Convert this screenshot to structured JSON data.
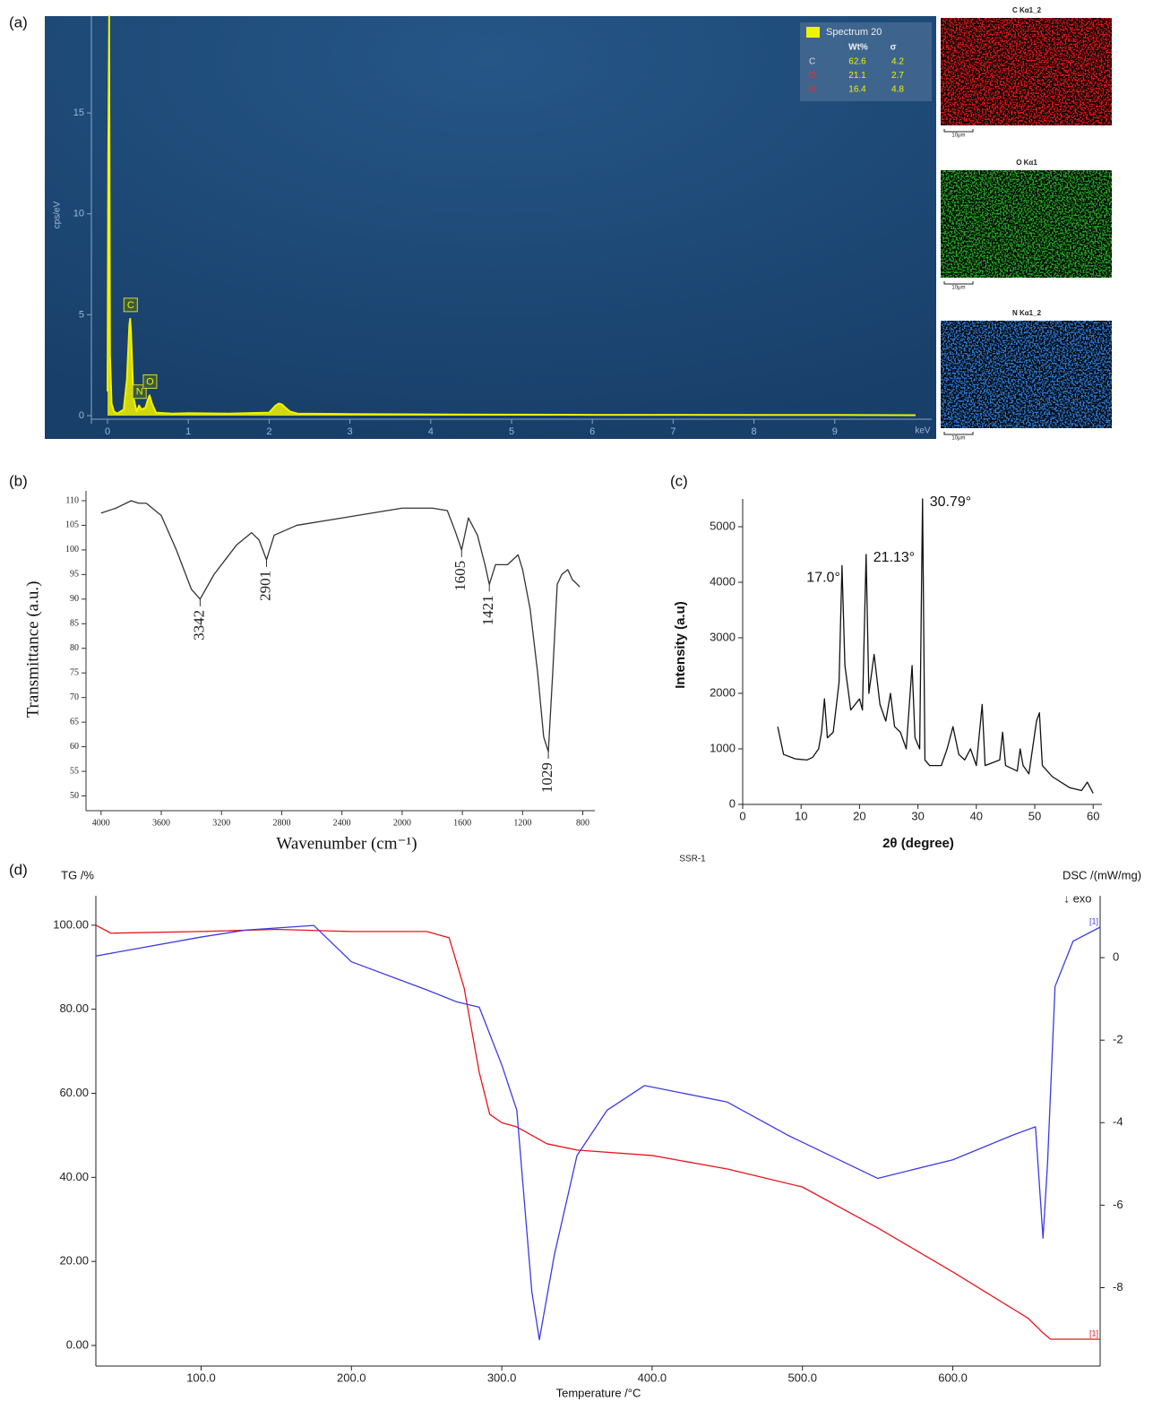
{
  "chart_data": [
    {
      "type": "area",
      "panel": "(a)",
      "x_label": "keV",
      "y_label": "cps/eV",
      "xlim": [
        -0.2,
        10.2
      ],
      "ylim": [
        -0.4,
        19.8
      ],
      "xticks": [
        0,
        1,
        2,
        3,
        4,
        5,
        6,
        7,
        8,
        9
      ],
      "yticks": [
        0,
        5,
        10,
        15
      ],
      "series": [
        {
          "color": "#f2f200",
          "x": [
            0,
            0.01,
            0.02,
            0.03,
            0.05,
            0.08,
            0.12,
            0.2,
            0.24,
            0.27,
            0.28,
            0.29,
            0.32,
            0.36,
            0.39,
            0.42,
            0.47,
            0.5,
            0.52,
            0.55,
            0.6,
            0.8,
            1,
            1.5,
            2,
            2.08,
            2.12,
            2.16,
            2.2,
            2.26,
            2.35,
            3,
            4,
            5,
            6,
            7,
            8,
            9,
            10
          ],
          "values": [
            1.2,
            13.5,
            19.8,
            3,
            0.6,
            0.2,
            0.1,
            0.3,
            1.8,
            4.5,
            4.8,
            4.2,
            0.9,
            0.2,
            0.5,
            0.3,
            0.4,
            0.8,
            1,
            0.6,
            0.15,
            0.1,
            0.12,
            0.1,
            0.15,
            0.5,
            0.6,
            0.55,
            0.4,
            0.2,
            0.1,
            0.08,
            0.06,
            0.05,
            0.04,
            0.04,
            0.03,
            0.03,
            0.02
          ]
        }
      ],
      "annotations": [
        {
          "text": "C",
          "x": 0.28,
          "y": 4.8
        },
        {
          "text": "N",
          "x": 0.39,
          "y": 0.5
        },
        {
          "text": "O",
          "x": 0.52,
          "y": 1
        }
      ],
      "legend_table": {
        "title": "Spectrum 20",
        "swatch_color": "#f2f200",
        "value_color": "#f2f200",
        "header": [
          "Wt%",
          "σ"
        ],
        "rows": [
          {
            "label": "C",
            "color": "#dddddd",
            "values": [
              62.6,
              4.2
            ]
          },
          {
            "label": "O",
            "color": "#e03030",
            "values": [
              21.1,
              2.7
            ]
          },
          {
            "label": "N",
            "color": "#e03030",
            "values": [
              16.4,
              4.8
            ]
          }
        ]
      },
      "maps": [
        {
          "title": "C Kα1_2",
          "color": "#e01818",
          "scale": "10μm"
        },
        {
          "title": "O Kα1",
          "color": "#22a822",
          "scale": "10μm"
        },
        {
          "title": "N Kα1_2",
          "color": "#2a7ad8",
          "scale": "10μm"
        }
      ]
    },
    {
      "type": "line",
      "panel": "(b)",
      "x_label": "Wavenumber (cm⁻¹)",
      "y_label": "Transmittance (a.u.)",
      "xlim": [
        4100,
        720
      ],
      "ylim": [
        47,
        112
      ],
      "xticks": [
        4000,
        3600,
        3200,
        2800,
        2400,
        2000,
        1600,
        1200,
        800
      ],
      "yticks": [
        50,
        55,
        60,
        65,
        70,
        75,
        80,
        85,
        90,
        95,
        100,
        105,
        110
      ],
      "series": [
        {
          "color": "#333333",
          "x": [
            4000,
            3900,
            3800,
            3750,
            3700,
            3600,
            3500,
            3400,
            3342,
            3250,
            3100,
            3000,
            2950,
            2901,
            2850,
            2700,
            2400,
            2200,
            2000,
            1800,
            1700,
            1650,
            1605,
            1560,
            1500,
            1450,
            1421,
            1380,
            1300,
            1230,
            1200,
            1150,
            1100,
            1060,
            1029,
            1000,
            970,
            940,
            900,
            870,
            820
          ],
          "values": [
            107.5,
            108.5,
            110,
            109.5,
            109.5,
            107,
            100,
            92,
            90,
            95,
            101,
            103.5,
            102,
            98,
            103,
            105,
            106.5,
            107.5,
            108.5,
            108.5,
            108,
            104,
            100,
            106.5,
            103,
            97,
            93,
            97,
            97,
            99,
            96,
            88,
            75,
            62,
            59,
            75,
            93,
            95,
            96,
            94,
            92.5
          ]
        }
      ],
      "annotations": [
        {
          "text": "3342",
          "x": 3342,
          "y": 90
        },
        {
          "text": "2901",
          "x": 2901,
          "y": 98
        },
        {
          "text": "1605",
          "x": 1605,
          "y": 100
        },
        {
          "text": "1421",
          "x": 1421,
          "y": 93
        },
        {
          "text": "1029",
          "x": 1029,
          "y": 59
        }
      ]
    },
    {
      "type": "line",
      "panel": "(c)",
      "x_label": "2θ (degree)",
      "y_label": "Intensity (a.u)",
      "xlim": [
        0,
        61.5
      ],
      "ylim": [
        0,
        5500
      ],
      "xticks": [
        0,
        10,
        20,
        30,
        40,
        50,
        60
      ],
      "yticks": [
        0,
        1000,
        2000,
        3000,
        4000,
        5000
      ],
      "series": [
        {
          "color": "#111111",
          "x": [
            6,
            7,
            9,
            11,
            12,
            13,
            13.5,
            14,
            14.5,
            15.5,
            16.5,
            17,
            17.5,
            18.5,
            20,
            20.5,
            21.13,
            21.6,
            22.5,
            23.5,
            24.5,
            25.3,
            26,
            27,
            28,
            29,
            29.5,
            30.3,
            30.79,
            31.2,
            32,
            34,
            35,
            36,
            37,
            38,
            39,
            40,
            41,
            41.5,
            44,
            44.5,
            45,
            47,
            47.5,
            48,
            49,
            50.3,
            50.8,
            51.3,
            53,
            56,
            58,
            59,
            60
          ],
          "values": [
            1400,
            900,
            820,
            800,
            850,
            1000,
            1300,
            1900,
            1200,
            1300,
            2200,
            4300,
            2500,
            1700,
            1900,
            1700,
            4500,
            2000,
            2700,
            1800,
            1500,
            2000,
            1400,
            1300,
            1000,
            2500,
            1200,
            1000,
            5500,
            800,
            700,
            700,
            1000,
            1400,
            900,
            800,
            1000,
            700,
            1800,
            700,
            800,
            1300,
            700,
            600,
            1000,
            700,
            550,
            1500,
            1650,
            700,
            500,
            300,
            250,
            400,
            200
          ]
        }
      ],
      "annotations": [
        {
          "text": "17.0°",
          "x": 17,
          "y": 4300
        },
        {
          "text": "21.13°",
          "x": 21.13,
          "y": 4500
        },
        {
          "text": "30.79°",
          "x": 30.79,
          "y": 5500
        }
      ]
    },
    {
      "type": "line",
      "panel": "(d)",
      "subtitle": "SSR-1",
      "x_label": "Temperature /°C",
      "y_label": "TG /%",
      "y2_label": "DSC /(mW/mg)",
      "note": "↓ exo",
      "xlim": [
        30,
        698
      ],
      "ylim": [
        -4.9,
        107
      ],
      "y2lim": [
        -9.9,
        1.5
      ],
      "xticks": [
        {
          "value": 100,
          "label": "100.0"
        },
        {
          "value": 200,
          "label": "200.0"
        },
        {
          "value": 300,
          "label": "300.0"
        },
        {
          "value": 400,
          "label": "400.0"
        },
        {
          "value": 500,
          "label": "500.0"
        },
        {
          "value": 600,
          "label": "600.0"
        }
      ],
      "yticks": [
        {
          "value": 0,
          "label": "0.00"
        },
        {
          "value": 20,
          "label": "20.00"
        },
        {
          "value": 40,
          "label": "40.00"
        },
        {
          "value": 60,
          "label": "60.00"
        },
        {
          "value": 80,
          "label": "80.00"
        },
        {
          "value": 100,
          "label": "100.00"
        }
      ],
      "y2ticks": [
        0,
        -2,
        -4,
        -6,
        -8
      ],
      "series": [
        {
          "color": "#e8141a",
          "end_label": "[1]",
          "x": [
            30,
            40,
            100,
            150,
            200,
            250,
            265,
            275,
            285,
            292,
            300,
            310,
            330,
            350,
            400,
            450,
            500,
            550,
            600,
            650,
            660,
            665,
            698
          ],
          "values": [
            100,
            98.1,
            98.5,
            99,
            98.5,
            98.5,
            97,
            85,
            65,
            55,
            53,
            52,
            48,
            46.5,
            45.2,
            42,
            37.7,
            28,
            17.5,
            6.5,
            3,
            1.5,
            1.5
          ]
        },
        {
          "color": "#3a3ae8",
          "axis": "y2",
          "end_label": "[1]",
          "x": [
            30,
            100,
            130,
            175,
            200,
            250,
            270,
            285,
            300,
            310,
            320,
            325,
            335,
            350,
            370,
            395,
            450,
            490,
            550,
            600,
            640,
            655,
            660,
            663,
            668,
            680,
            698
          ],
          "values": [
            0.04,
            0.5,
            0.67,
            0.78,
            -0.1,
            -0.78,
            -1.07,
            -1.2,
            -2.6,
            -3.7,
            -8.1,
            -9.26,
            -7.2,
            -4.8,
            -3.7,
            -3.1,
            -3.5,
            -4.3,
            -5.35,
            -4.9,
            -4.3,
            -4.1,
            -6.8,
            -5,
            -0.7,
            0.4,
            0.74
          ]
        }
      ]
    }
  ]
}
